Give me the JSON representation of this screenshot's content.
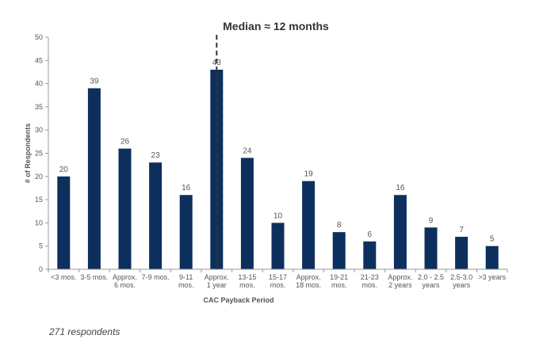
{
  "chart_data": {
    "type": "bar",
    "categories": [
      [
        "<3 mos."
      ],
      [
        "3-5 mos."
      ],
      [
        "Approx.",
        "6 mos."
      ],
      [
        "7-9 mos."
      ],
      [
        "9-11",
        "mos."
      ],
      [
        "Approx.",
        "1 year"
      ],
      [
        "13-15",
        "mos."
      ],
      [
        "15-17",
        "mos."
      ],
      [
        "Approx.",
        "18 mos."
      ],
      [
        "19-21",
        "mos."
      ],
      [
        "21-23",
        "mos."
      ],
      [
        "Approx.",
        "2 years"
      ],
      [
        "2.0 - 2.5",
        "years"
      ],
      [
        "2.5-3.0",
        "years"
      ],
      [
        ">3 years"
      ]
    ],
    "values": [
      20,
      39,
      26,
      23,
      16,
      43,
      24,
      10,
      19,
      8,
      6,
      16,
      9,
      7,
      5
    ],
    "xlabel": "CAC Payback Period",
    "ylabel": "# of Respondents",
    "ylim": [
      0,
      50
    ],
    "yticks": [
      0,
      5,
      10,
      15,
      20,
      25,
      30,
      35,
      40,
      45,
      50
    ],
    "grid": false,
    "bar_color": "#0d2f5e",
    "annotation": {
      "text": "Median ≈ 12 months",
      "category_index": 5,
      "style": "dashed vertical line"
    }
  },
  "footnote": "271 respondents"
}
